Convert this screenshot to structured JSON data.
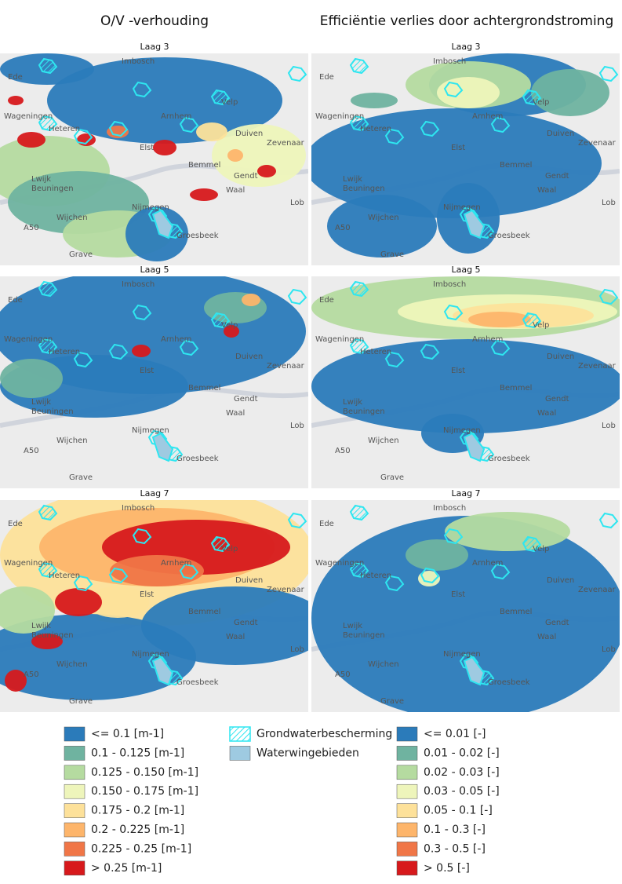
{
  "headers": [
    "O/V -verhouding",
    "Efficiëntie verlies door achtergrondstroming"
  ],
  "rows": [
    {
      "layer": "Laag 3"
    },
    {
      "layer": "Laag 5"
    },
    {
      "layer": "Laag 7"
    }
  ],
  "place_names": [
    "Imbosch",
    "Ede",
    "Wageningen",
    "Arnhem",
    "Velp",
    "Heteren",
    "Duiven",
    "Zevenaar",
    "Elst",
    "Bemmel",
    "Gendt",
    "Lwijk",
    "Beuningen",
    "Waal",
    "Nijmegen",
    "Wijchen",
    "Groesbeek",
    "Grave",
    "A50",
    "Lob"
  ],
  "legend": {
    "ov": [
      {
        "label": "<= 0.1 [m-1]",
        "color": "#2b7bba"
      },
      {
        "label": "0.1 - 0.125 [m-1]",
        "color": "#6fb3a0"
      },
      {
        "label": "0.125 - 0.150 [m-1]",
        "color": "#b5dba0"
      },
      {
        "label": "0.150 - 0.175 [m-1]",
        "color": "#eef5bb"
      },
      {
        "label": "0.175 - 0.2 [m-1]",
        "color": "#fde19a"
      },
      {
        "label": "0.2 - 0.225 [m-1]",
        "color": "#fdb56b"
      },
      {
        "label": "0.225 - 0.25 [m-1]",
        "color": "#f07647"
      },
      {
        "label": "> 0.25 [m-1]",
        "color": "#d7191c"
      }
    ],
    "areas": [
      {
        "label": "Grondwaterbescherming"
      },
      {
        "label": "Waterwingebieden"
      }
    ],
    "efficiency": [
      {
        "label": "<= 0.01 [-]",
        "color": "#2b7bba"
      },
      {
        "label": "0.01 - 0.02 [-]",
        "color": "#6fb3a0"
      },
      {
        "label": "0.02 - 0.03 [-]",
        "color": "#b5dba0"
      },
      {
        "label": "0.03 - 0.05 [-]",
        "color": "#eef5bb"
      },
      {
        "label": "0.05 - 0.1 [-]",
        "color": "#fde19a"
      },
      {
        "label": "0.1 - 0.3 [-]",
        "color": "#fdb56b"
      },
      {
        "label": "0.3 - 0.5 [-]",
        "color": "#f07647"
      },
      {
        "label": "> 0.5 [-]",
        "color": "#d7191c"
      }
    ]
  }
}
